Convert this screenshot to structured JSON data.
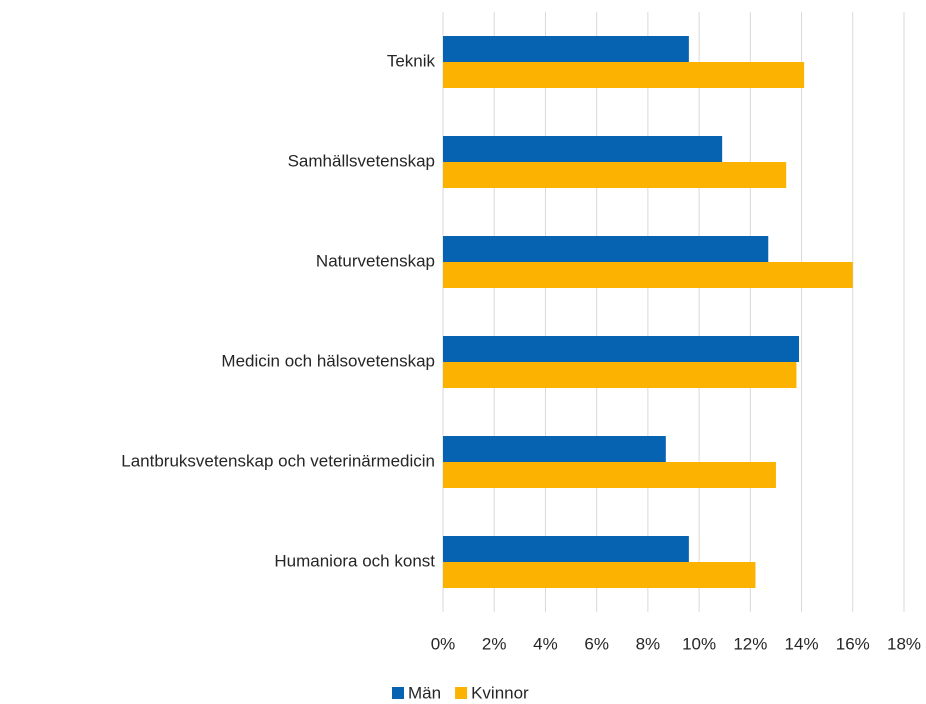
{
  "chart_data": {
    "type": "hbar",
    "categories": [
      "Teknik",
      "Samhällsvetenskap",
      "Naturvetenskap",
      "Medicin och hälsovetenskap",
      "Lantbruksvetenskap och veterinärmedicin",
      "Humaniora och konst"
    ],
    "series": [
      {
        "name": "Män",
        "color": "#0563b2",
        "values": [
          9.6,
          10.9,
          12.7,
          13.9,
          8.7,
          9.6
        ]
      },
      {
        "name": "Kvinnor",
        "color": "#fbb200",
        "values": [
          14.1,
          13.4,
          16.0,
          13.8,
          13.0,
          12.2
        ]
      }
    ],
    "xlim": [
      0,
      18
    ],
    "xticks": [
      {
        "value": 0,
        "label": "0%"
      },
      {
        "value": 2,
        "label": "2%"
      },
      {
        "value": 4,
        "label": "4%"
      },
      {
        "value": 6,
        "label": "6%"
      },
      {
        "value": 8,
        "label": "8%"
      },
      {
        "value": 10,
        "label": "10%"
      },
      {
        "value": 12,
        "label": "12%"
      },
      {
        "value": 14,
        "label": "14%"
      },
      {
        "value": 16,
        "label": "16%"
      },
      {
        "value": 18,
        "label": "18%"
      }
    ],
    "grid": true,
    "legend": "bottom"
  }
}
